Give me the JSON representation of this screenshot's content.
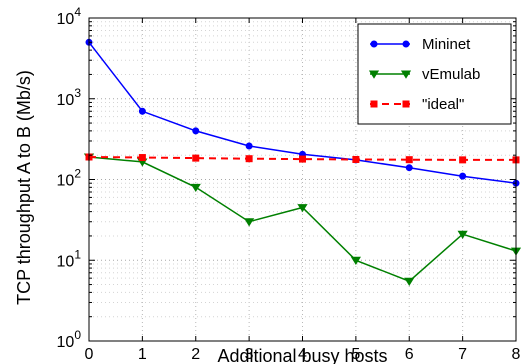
{
  "chart_data": {
    "type": "line",
    "title": "",
    "xlabel": "Additional busy hosts",
    "ylabel": "TCP throughput A to B (Mb/s)",
    "x": [
      0,
      1,
      2,
      3,
      4,
      5,
      6,
      7,
      8
    ],
    "xlim": [
      0,
      8
    ],
    "ylim": [
      1,
      10000
    ],
    "yscale": "log",
    "xticks": [
      "0",
      "1",
      "2",
      "3",
      "4",
      "5",
      "6",
      "7",
      "8"
    ],
    "yticks": [
      {
        "base": "10",
        "exp": "0",
        "value": 1
      },
      {
        "base": "10",
        "exp": "1",
        "value": 10
      },
      {
        "base": "10",
        "exp": "2",
        "value": 100
      },
      {
        "base": "10",
        "exp": "3",
        "value": 1000
      },
      {
        "base": "10",
        "exp": "4",
        "value": 10000
      }
    ],
    "grid": true,
    "legend_position": "top-right",
    "series": [
      {
        "name": "Mininet",
        "color": "#0000ff",
        "marker": "circle",
        "line": "solid",
        "values": [
          5000,
          700,
          400,
          260,
          205,
          175,
          140,
          110,
          90
        ]
      },
      {
        "name": "vEmulab",
        "color": "#008000",
        "marker": "triangle-down",
        "line": "solid",
        "values": [
          190,
          165,
          80,
          30,
          45,
          10,
          5.5,
          21,
          13
        ]
      },
      {
        "name": "\"ideal\"",
        "color": "#ff0000",
        "marker": "square",
        "line": "dashed",
        "values": [
          190,
          187,
          184,
          181,
          179,
          177,
          176,
          175,
          175
        ]
      }
    ]
  }
}
